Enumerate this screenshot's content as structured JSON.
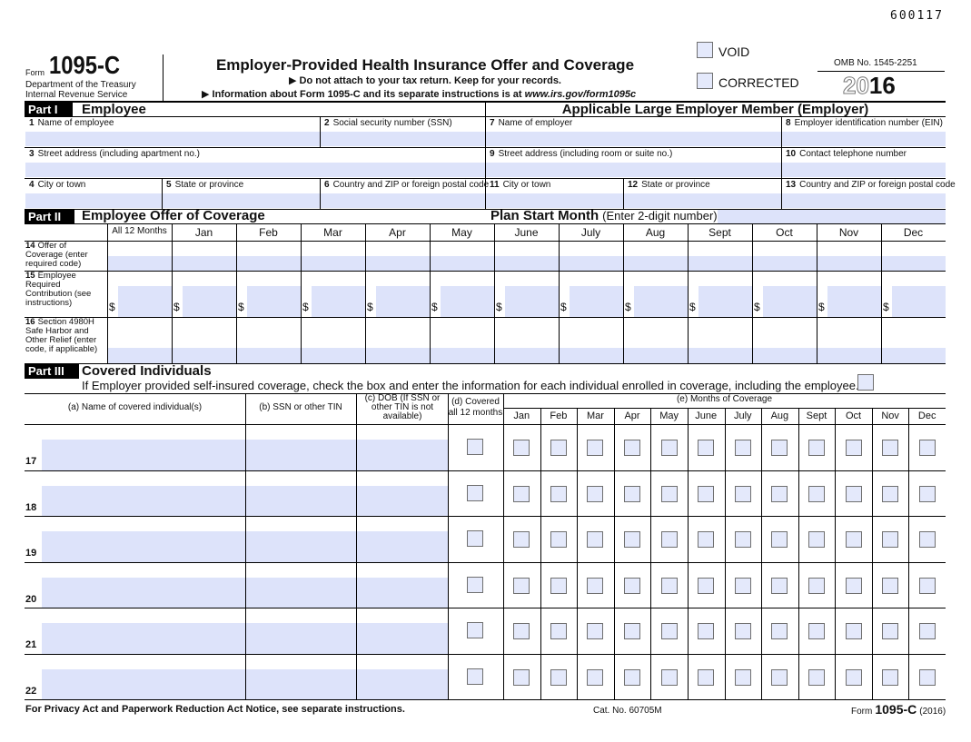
{
  "form_code": "600117",
  "header": {
    "form_label": "Form",
    "form_number": "1095-C",
    "department": "Department of the Treasury",
    "bureau": "Internal Revenue Service",
    "title": "Employer-Provided Health Insurance Offer and Coverage",
    "instruction_1": "▶ Do not attach to your tax return. Keep for your records.",
    "instruction_2_prefix": "▶ Information about Form 1095-C and its separate instructions is at ",
    "instruction_2_url": "www.irs.gov/form1095c",
    "void": "VOID",
    "corrected": "CORRECTED",
    "omb": "OMB No. 1545-2251",
    "year_prefix": "20",
    "year_suffix": "16"
  },
  "part1": {
    "label": "Part I",
    "title": "Employee",
    "employer_title": "Applicable Large Employer Member (Employer)",
    "fields": [
      {
        "number": "1",
        "label": "Name of employee"
      },
      {
        "number": "2",
        "label": "Social security number (SSN)"
      },
      {
        "number": "7",
        "label": "Name of employer"
      },
      {
        "number": "8",
        "label": "Employer identification number (EIN)"
      },
      {
        "number": "3",
        "label": "Street address (including apartment no.)"
      },
      {
        "number": "9",
        "label": "Street address (including room or suite no.)"
      },
      {
        "number": "10",
        "label": "Contact telephone number"
      },
      {
        "number": "4",
        "label": "City or town"
      },
      {
        "number": "5",
        "label": "State or province"
      },
      {
        "number": "6",
        "label": "Country and ZIP or foreign postal code"
      },
      {
        "number": "11",
        "label": "City or town"
      },
      {
        "number": "12",
        "label": "State or province"
      },
      {
        "number": "13",
        "label": "Country and ZIP or foreign postal code"
      }
    ]
  },
  "part2": {
    "label": "Part II",
    "title": "Employee Offer of Coverage",
    "plan_start": "Plan Start Month",
    "plan_start_note": "(Enter 2-digit number):",
    "columns": [
      "All 12 Months",
      "Jan",
      "Feb",
      "Mar",
      "Apr",
      "May",
      "June",
      "July",
      "Aug",
      "Sept",
      "Oct",
      "Nov",
      "Dec"
    ],
    "currency": "$",
    "rows": [
      {
        "number": "14",
        "label": "Offer of Coverage (enter required code)"
      },
      {
        "number": "15",
        "label": "Employee Required Contribution (see instructions)"
      },
      {
        "number": "16",
        "label": "Section 4980H Safe Harbor and Other Relief (enter code, if applicable)"
      }
    ]
  },
  "part3": {
    "label": "Part III",
    "title": "Covered Individuals",
    "instruction": "If Employer provided self-insured coverage, check the box and enter the information for each individual enrolled in coverage, including the employee.",
    "col_a": "(a) Name of covered individual(s)",
    "col_b": "(b) SSN or other TIN",
    "col_c": "(c) DOB (If SSN or other TIN is not available)",
    "col_d": "(d) Covered all 12 months",
    "col_e": "(e) Months of Coverage",
    "months": [
      "Jan",
      "Feb",
      "Mar",
      "Apr",
      "May",
      "June",
      "July",
      "Aug",
      "Sept",
      "Oct",
      "Nov",
      "Dec"
    ],
    "rows": [
      "17",
      "18",
      "19",
      "20",
      "21",
      "22"
    ]
  },
  "footer": {
    "privacy": "For Privacy Act and Paperwork Reduction Act Notice, see separate instructions.",
    "cat": "Cat. No. 60705M",
    "form_label": "Form",
    "form_number": "1095-C",
    "year": "(2016)"
  }
}
